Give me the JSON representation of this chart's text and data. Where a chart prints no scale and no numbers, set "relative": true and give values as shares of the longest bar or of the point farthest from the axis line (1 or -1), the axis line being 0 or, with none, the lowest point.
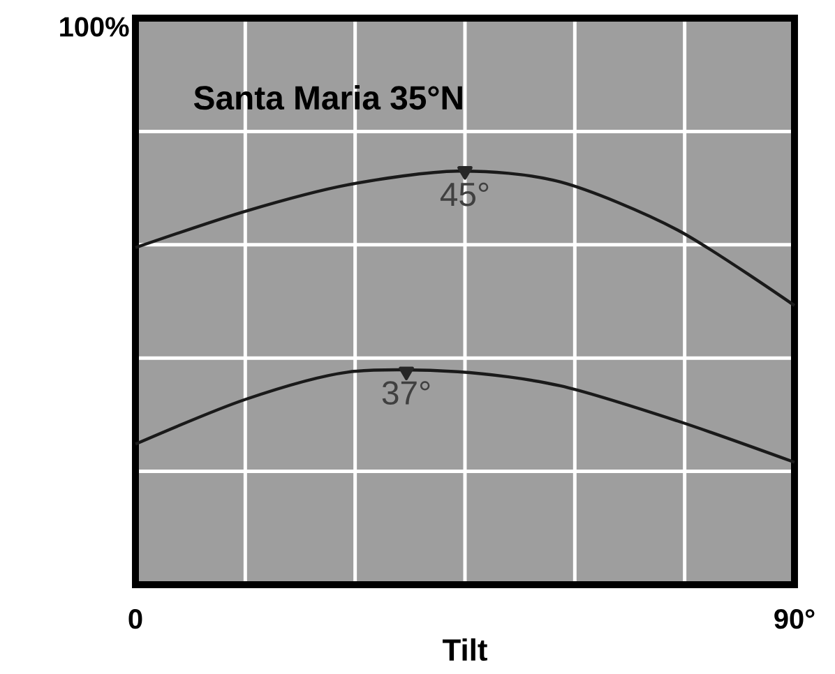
{
  "chart_data": {
    "type": "line",
    "title": "Santa Maria   35°N",
    "xlabel": "Tilt",
    "relative": true,
    "x": [
      0,
      15,
      29,
      44,
      58,
      74,
      90
    ],
    "series": [
      {
        "color": "#1a1a1a",
        "values": [
          0.815,
          0.903,
          0.967,
          1,
          0.974,
          0.858,
          0.675
        ]
      },
      {
        "color": "#1a1a1a",
        "values": [
          0.34,
          0.448,
          0.514,
          0.515,
          0.481,
          0.396,
          0.296
        ]
      },
      {
        "type": "scatter",
        "marker": "triangle",
        "color": "#262626",
        "x": [
          45,
          37
        ],
        "values": [
          1,
          0.515
        ]
      }
    ],
    "xlim": [
      0,
      90
    ],
    "xticks": [
      {
        "value": 0,
        "label": "0"
      },
      {
        "value": 15,
        "label": null
      },
      {
        "value": 30,
        "label": null
      },
      {
        "value": 45,
        "label": null
      },
      {
        "value": 60,
        "label": null
      },
      {
        "value": 75,
        "label": null
      },
      {
        "value": 90,
        "label": "90°"
      }
    ],
    "grid": true,
    "marker": "none",
    "line_style": "solid",
    "annotations": [
      "100%",
      {
        "text": "45°",
        "x": 45,
        "y": 1
      },
      {
        "text": "37°",
        "x": 37,
        "y": 0.52
      }
    ]
  }
}
